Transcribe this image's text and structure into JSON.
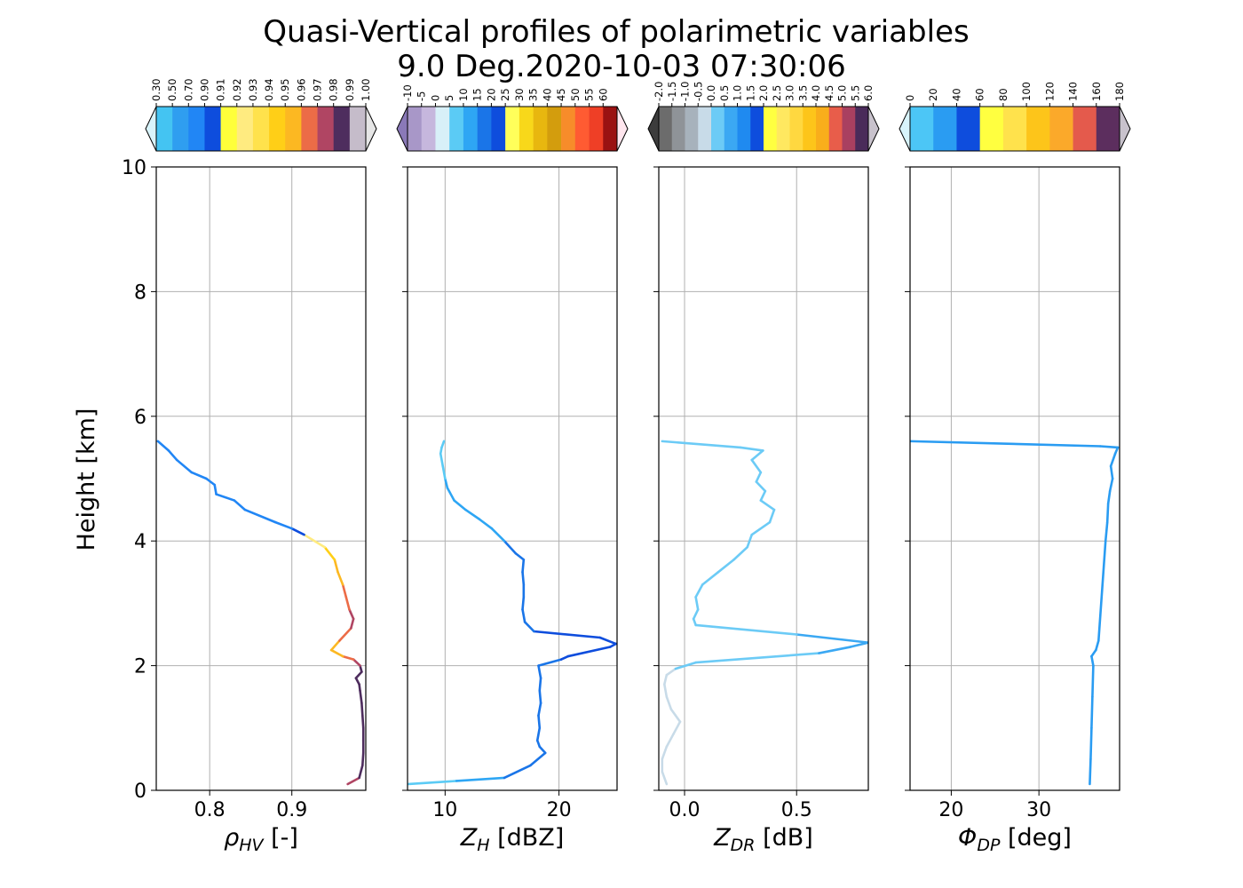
{
  "title_line1": "Quasi-Vertical profiles of polarimetric variables",
  "title_line2": "9.0 Deg.2020-10-03 07:30:06",
  "ylabel": "Height [km]",
  "ylim": [
    0,
    10
  ],
  "yticks": [
    0,
    2,
    4,
    6,
    8,
    10
  ],
  "chart_data": [
    {
      "type": "line",
      "xlabel_var": "ρ",
      "xlabel_sub": "HV",
      "xlabel_unit": " [-]",
      "xlim": [
        0.735,
        0.99
      ],
      "xticks": [
        0.8,
        0.9
      ],
      "xtick_labels": [
        "0.8",
        "0.9"
      ],
      "colorbar_levels": [
        0.3,
        0.5,
        0.7,
        0.9,
        0.91,
        0.92,
        0.93,
        0.94,
        0.95,
        0.96,
        0.97,
        0.98,
        0.99,
        1.0
      ],
      "colorbar_labels": [
        "0.30",
        "0.50",
        "0.70",
        "0.90",
        "0.91",
        "0.92",
        "0.93",
        "0.94",
        "0.95",
        "0.96",
        "0.97",
        "0.98",
        "0.99",
        "1.00"
      ],
      "colorbar_colors": [
        "#44c4f2",
        "#2f9ef0",
        "#2186f5",
        "#0e4ddd",
        "#ffff3a",
        "#ffeb80",
        "#ffe24c",
        "#ffcf17",
        "#fcb822",
        "#ec6c47",
        "#b04563",
        "#4e2d5e",
        "#c5bcca"
      ],
      "under_color": "#d8f4fb",
      "over_color": "#e6e6e6",
      "y": [
        0.1,
        0.2,
        0.4,
        0.6,
        0.8,
        1.0,
        1.2,
        1.4,
        1.6,
        1.7,
        1.8,
        1.9,
        2.0,
        2.1,
        2.15,
        2.25,
        2.4,
        2.6,
        2.75,
        2.9,
        3.1,
        3.3,
        3.5,
        3.7,
        3.9,
        4.1,
        4.2,
        4.3,
        4.5,
        4.65,
        4.75,
        4.9,
        5.0,
        5.1,
        5.3,
        5.45,
        5.6
      ],
      "x": [
        0.968,
        0.982,
        0.986,
        0.987,
        0.987,
        0.987,
        0.986,
        0.985,
        0.983,
        0.982,
        0.978,
        0.985,
        0.983,
        0.975,
        0.962,
        0.948,
        0.958,
        0.972,
        0.975,
        0.97,
        0.966,
        0.962,
        0.956,
        0.952,
        0.94,
        0.915,
        0.9,
        0.88,
        0.843,
        0.83,
        0.808,
        0.806,
        0.796,
        0.778,
        0.76,
        0.75,
        0.737
      ]
    },
    {
      "type": "line",
      "xlabel_var": "Z",
      "xlabel_sub": "H",
      "xlabel_unit": " [dBZ]",
      "xlim": [
        6.7,
        25.1
      ],
      "xticks": [
        10,
        20
      ],
      "xtick_labels": [
        "10",
        "20"
      ],
      "colorbar_levels": [
        -10,
        -5,
        0,
        5,
        10,
        15,
        20,
        25,
        30,
        35,
        40,
        45,
        50,
        55,
        60
      ],
      "colorbar_labels": [
        "-10",
        "-5",
        "0",
        "5",
        "10",
        "15",
        "20",
        "25",
        "30",
        "35",
        "40",
        "45",
        "50",
        "55",
        "60"
      ],
      "colorbar_colors": [
        "#a897c8",
        "#c6b7dd",
        "#d8f0f8",
        "#5bcbf5",
        "#2ea6f4",
        "#1a75e8",
        "#0e4ddd",
        "#ffff5a",
        "#f8d81a",
        "#e8b70f",
        "#d39d0d",
        "#f78c2a",
        "#ff5b32",
        "#ef3f26",
        "#9a1212"
      ],
      "under_color": "#8a79b8",
      "over_color": "#ffe6ee",
      "y": [
        0.1,
        0.15,
        0.2,
        0.4,
        0.6,
        0.7,
        0.8,
        1.0,
        1.2,
        1.4,
        1.6,
        1.8,
        2.0,
        2.1,
        2.15,
        2.3,
        2.35,
        2.45,
        2.55,
        2.7,
        2.9,
        3.1,
        3.3,
        3.5,
        3.7,
        3.8,
        4.0,
        4.2,
        4.35,
        4.5,
        4.65,
        4.85,
        5.0,
        5.2,
        5.4,
        5.5,
        5.6
      ],
      "x": [
        6.8,
        11.0,
        15.2,
        17.5,
        18.8,
        18.3,
        18.1,
        18.3,
        18.2,
        18.4,
        18.3,
        18.4,
        18.2,
        20.2,
        20.8,
        24.5,
        25.0,
        23.6,
        17.8,
        17.0,
        16.8,
        16.9,
        16.9,
        16.8,
        16.9,
        16.2,
        15.2,
        14.1,
        13.0,
        11.8,
        10.8,
        10.2,
        10.0,
        9.8,
        9.6,
        9.7,
        9.9
      ]
    },
    {
      "type": "line",
      "xlabel_var": "Z",
      "xlabel_sub": "DR",
      "xlabel_unit": " [dB]",
      "xlim": [
        -0.115,
        0.82
      ],
      "xticks": [
        0.0,
        0.5
      ],
      "xtick_labels": [
        "0.0",
        "0.5"
      ],
      "colorbar_levels": [
        -2.0,
        -1.5,
        -1.0,
        -0.5,
        0.0,
        0.5,
        1.0,
        1.5,
        2.0,
        2.5,
        3.0,
        3.5,
        4.0,
        4.5,
        5.0,
        5.5,
        6.0
      ],
      "colorbar_labels": [
        "-2.0",
        "-1.5",
        "-1.0",
        "-0.5",
        "0.0",
        "0.5",
        "1.0",
        "1.5",
        "2.0",
        "2.5",
        "3.0",
        "3.5",
        "4.0",
        "4.5",
        "5.0",
        "5.5",
        "6.0"
      ],
      "colorbar_colors": [
        "#6c6c6c",
        "#8f9398",
        "#a7b2bc",
        "#c8dbe8",
        "#6ccbf6",
        "#3ba8f3",
        "#1f8af0",
        "#0e4ddd",
        "#ffff40",
        "#ffe860",
        "#ffd840",
        "#fdc51a",
        "#f9ae1b",
        "#e85d4a",
        "#a94060",
        "#4a2b5a"
      ],
      "under_color": "#3c3c3c",
      "over_color": "#c8c2cc",
      "y": [
        0.1,
        0.3,
        0.5,
        0.7,
        0.9,
        1.1,
        1.3,
        1.5,
        1.7,
        1.85,
        1.95,
        2.05,
        2.2,
        2.3,
        2.37,
        2.5,
        2.65,
        2.75,
        2.9,
        3.1,
        3.3,
        3.5,
        3.7,
        3.9,
        4.1,
        4.3,
        4.5,
        4.65,
        4.8,
        4.95,
        5.1,
        5.3,
        5.45,
        5.5,
        5.6
      ],
      "x": [
        -0.08,
        -0.1,
        -0.1,
        -0.08,
        -0.05,
        -0.02,
        -0.06,
        -0.08,
        -0.09,
        -0.08,
        -0.04,
        0.05,
        0.6,
        0.74,
        0.82,
        0.5,
        0.05,
        0.04,
        0.06,
        0.05,
        0.08,
        0.15,
        0.22,
        0.28,
        0.3,
        0.38,
        0.4,
        0.34,
        0.36,
        0.32,
        0.34,
        0.3,
        0.35,
        0.25,
        -0.1
      ]
    },
    {
      "type": "line",
      "xlabel_var": "Φ",
      "xlabel_sub": "DP",
      "xlabel_unit": " [deg]",
      "xlim": [
        15.3,
        39.2
      ],
      "xticks": [
        20,
        30
      ],
      "xtick_labels": [
        "20",
        "30"
      ],
      "colorbar_levels": [
        0,
        20,
        40,
        60,
        80,
        100,
        120,
        140,
        160,
        180
      ],
      "colorbar_labels": [
        "0",
        "20",
        "40",
        "60",
        "80",
        "100",
        "120",
        "140",
        "160",
        "180"
      ],
      "colorbar_colors": [
        "#4cc6f6",
        "#2a9cf2",
        "#0e4ddd",
        "#ffff40",
        "#ffe24c",
        "#fdc51a",
        "#fba92a",
        "#e45a4c",
        "#5c2e5e"
      ],
      "under_color": "#d8f4fb",
      "over_color": "#c8c2cc",
      "y": [
        0.1,
        0.5,
        1.0,
        1.5,
        2.0,
        2.15,
        2.25,
        2.4,
        2.8,
        3.2,
        3.6,
        4.0,
        4.3,
        4.6,
        4.8,
        5.0,
        5.2,
        5.4,
        5.5,
        5.52,
        5.6
      ],
      "x": [
        35.8,
        35.9,
        36.0,
        36.1,
        36.2,
        36.0,
        36.5,
        36.8,
        37.0,
        37.2,
        37.4,
        37.6,
        37.8,
        37.9,
        38.1,
        38.4,
        38.2,
        38.7,
        39.0,
        37.0,
        15.4
      ]
    }
  ]
}
